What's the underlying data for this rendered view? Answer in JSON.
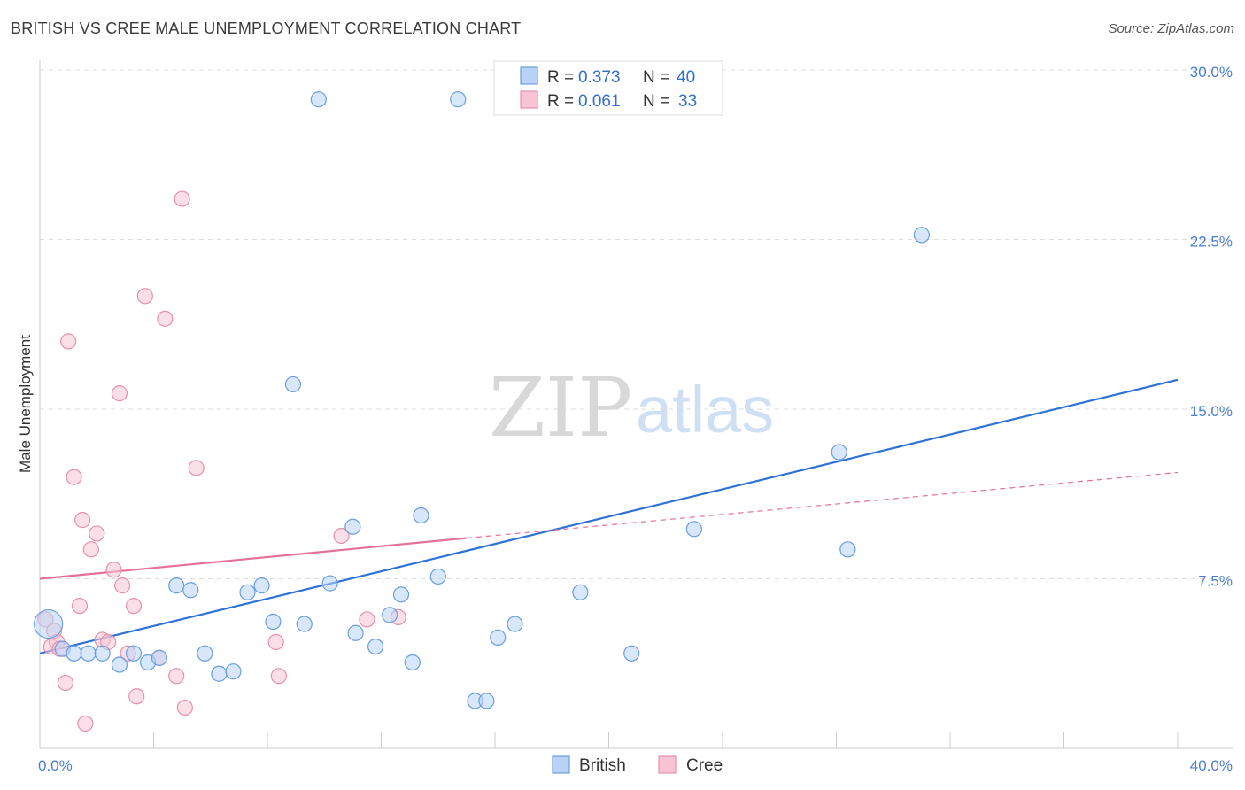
{
  "title": "BRITISH VS CREE MALE UNEMPLOYMENT CORRELATION CHART",
  "source": "Source: ZipAtlas.com",
  "watermark": {
    "zip": "ZIP",
    "atlas": "atlas"
  },
  "colors": {
    "british_fill": "#b8d3f5",
    "british_stroke": "#6a9ee0",
    "british_line": "#2f72d4",
    "cree_fill": "#f8c4d4",
    "cree_stroke": "#e890ad",
    "cree_line": "#e4709a",
    "grid": "#dddddd",
    "tick": "#4a7fcf"
  },
  "legend": {
    "british": {
      "r_label": "R = ",
      "r_value": "0.373",
      "n_label": "N = ",
      "n_value": "40"
    },
    "cree": {
      "r_label": "R = ",
      "r_value": "0.061",
      "n_label": "N = ",
      "n_value": "33"
    }
  },
  "chart_data": {
    "type": "scatter",
    "title": "BRITISH VS CREE MALE UNEMPLOYMENT CORRELATION CHART",
    "xlabel": "",
    "ylabel": "Male Unemployment",
    "xlim": [
      0,
      40
    ],
    "ylim": [
      0,
      30
    ],
    "x_tick_labels": [
      {
        "value": 0,
        "label": "0.0%"
      },
      {
        "value": 40,
        "label": "40.0%"
      }
    ],
    "y_tick_labels": [
      {
        "value": 7.5,
        "label": "7.5%"
      },
      {
        "value": 15,
        "label": "15.0%"
      },
      {
        "value": 22.5,
        "label": "22.5%"
      },
      {
        "value": 30,
        "label": "30.0%"
      }
    ],
    "grid": true,
    "legend_position": "top-center",
    "series": [
      {
        "name": "British",
        "color": "#b8d3f5",
        "points": [
          [
            0.3,
            5.5,
            1.6
          ],
          [
            0.8,
            4.4,
            1.0
          ],
          [
            1.2,
            4.2,
            0.6
          ],
          [
            1.7,
            4.2,
            0.6
          ],
          [
            2.2,
            4.2,
            0.6
          ],
          [
            2.8,
            3.7,
            0.6
          ],
          [
            3.3,
            4.2,
            0.6
          ],
          [
            3.8,
            3.8,
            0.6
          ],
          [
            4.2,
            4.0,
            0.6
          ],
          [
            4.8,
            7.2,
            0.6
          ],
          [
            5.3,
            7.0,
            0.6
          ],
          [
            5.8,
            4.2,
            0.6
          ],
          [
            6.3,
            3.3,
            0.6
          ],
          [
            6.8,
            3.4,
            0.6
          ],
          [
            7.3,
            6.9,
            0.6
          ],
          [
            7.8,
            7.2,
            0.6
          ],
          [
            8.2,
            5.6,
            0.6
          ],
          [
            8.9,
            16.1,
            0.6
          ],
          [
            9.3,
            5.5,
            0.6
          ],
          [
            9.8,
            28.7,
            0.6
          ],
          [
            10.2,
            7.3,
            0.6
          ],
          [
            11.0,
            9.8,
            0.6
          ],
          [
            11.1,
            5.1,
            0.6
          ],
          [
            11.8,
            4.5,
            0.6
          ],
          [
            12.3,
            5.9,
            0.6
          ],
          [
            12.7,
            6.8,
            0.6
          ],
          [
            13.1,
            3.8,
            0.6
          ],
          [
            13.4,
            10.3,
            0.6
          ],
          [
            14.0,
            7.6,
            0.6
          ],
          [
            14.7,
            28.7,
            0.6
          ],
          [
            15.3,
            2.1,
            0.6
          ],
          [
            15.7,
            2.1,
            0.6
          ],
          [
            16.1,
            4.9,
            0.6
          ],
          [
            16.7,
            5.5,
            0.6
          ],
          [
            19.0,
            6.9,
            0.6
          ],
          [
            20.8,
            4.2,
            0.6
          ],
          [
            23.0,
            9.7,
            0.6
          ],
          [
            28.4,
            8.8,
            0.6
          ],
          [
            28.1,
            13.1,
            0.6
          ],
          [
            31.0,
            22.7,
            0.6
          ]
        ],
        "trend": {
          "x": [
            0,
            40
          ],
          "y": [
            4.2,
            16.3
          ]
        }
      },
      {
        "name": "Cree",
        "color": "#f8c4d4",
        "points": [
          [
            0.2,
            5.7,
            0.6
          ],
          [
            0.4,
            4.5,
            0.6
          ],
          [
            0.5,
            5.2,
            0.6
          ],
          [
            0.6,
            4.7,
            0.6
          ],
          [
            0.7,
            4.4,
            0.6
          ],
          [
            0.9,
            2.9,
            0.6
          ],
          [
            1.0,
            18.0,
            0.6
          ],
          [
            1.2,
            12.0,
            0.6
          ],
          [
            1.4,
            6.3,
            0.6
          ],
          [
            1.5,
            10.1,
            0.6
          ],
          [
            1.6,
            1.1,
            0.6
          ],
          [
            1.8,
            8.8,
            0.6
          ],
          [
            2.0,
            9.5,
            0.6
          ],
          [
            2.2,
            4.8,
            0.6
          ],
          [
            2.4,
            4.7,
            0.6
          ],
          [
            2.6,
            7.9,
            0.6
          ],
          [
            2.8,
            15.7,
            0.6
          ],
          [
            2.9,
            7.2,
            0.6
          ],
          [
            3.1,
            4.2,
            0.6
          ],
          [
            3.3,
            6.3,
            0.6
          ],
          [
            3.4,
            2.3,
            0.6
          ],
          [
            3.7,
            20.0,
            0.6
          ],
          [
            4.2,
            4.0,
            0.6
          ],
          [
            4.4,
            19.0,
            0.6
          ],
          [
            4.8,
            3.2,
            0.6
          ],
          [
            5.0,
            24.3,
            0.6
          ],
          [
            5.1,
            1.8,
            0.6
          ],
          [
            5.5,
            12.4,
            0.6
          ],
          [
            8.3,
            4.7,
            0.6
          ],
          [
            8.4,
            3.2,
            0.6
          ],
          [
            10.6,
            9.4,
            0.6
          ],
          [
            11.5,
            5.7,
            0.6
          ],
          [
            12.6,
            5.8,
            0.6
          ]
        ],
        "trend": {
          "x": [
            0,
            15
          ],
          "y": [
            7.5,
            9.3
          ],
          "dashed_extension": {
            "x": [
              15,
              40
            ],
            "y": [
              9.3,
              12.2
            ]
          }
        }
      }
    ]
  }
}
